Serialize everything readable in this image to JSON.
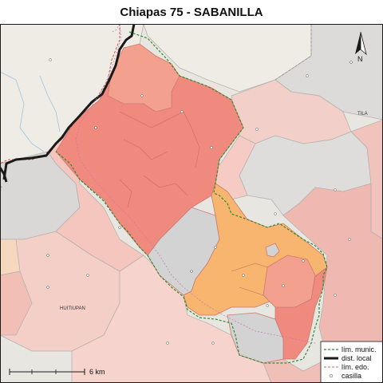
{
  "title": "Chiapas 75 - SABANILLA",
  "place_labels": {
    "tila": "TILA",
    "huitiupan": "HUITIUPAN"
  },
  "north_label": "N",
  "scale": {
    "label": "6 km"
  },
  "legend": {
    "items": [
      {
        "label": "lím. munic.",
        "symbol": "dashed-green-line"
      },
      {
        "label": "dist. local",
        "symbol": "thick-black-line"
      },
      {
        "label": "lím. edo.",
        "symbol": "dashed-red-line"
      },
      {
        "label": "casilla",
        "symbol": "small-circle"
      }
    ]
  },
  "colors": {
    "district_red": "#f08a7e",
    "district_salmon": "#f4a08f",
    "district_orange": "#f7b56f",
    "gray": "#d3d3d3",
    "pink_light": "#f5c9c0",
    "pink_mid": "#eeb0a6",
    "beige": "#efece6",
    "border_green": "#2e8b2e"
  }
}
